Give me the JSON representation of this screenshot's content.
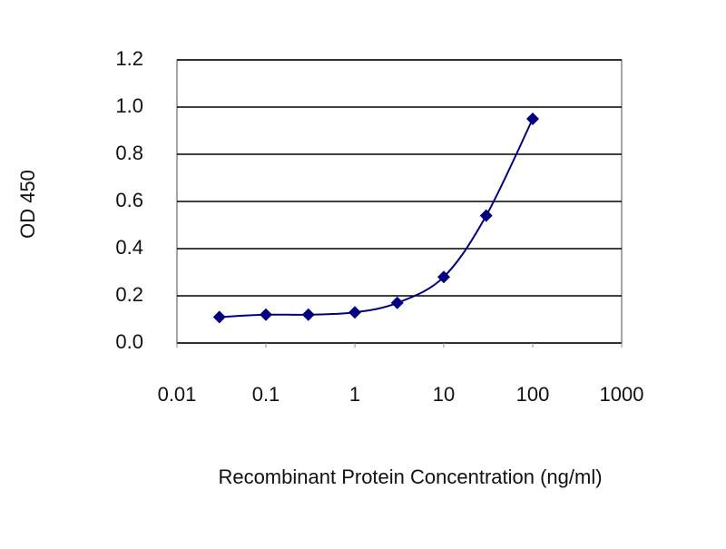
{
  "chart_data": {
    "type": "line",
    "x_label": "Recombinant Protein Concentration (ng/ml)",
    "y_label": "OD 450",
    "x": [
      0.03,
      0.1,
      0.3,
      1,
      3,
      10,
      30,
      100
    ],
    "series": [
      {
        "color": "#00007f",
        "values": [
          0.11,
          0.12,
          0.12,
          0.13,
          0.17,
          0.28,
          0.54,
          0.95
        ]
      }
    ],
    "xscale": "log",
    "xlim": [
      0.01,
      1000
    ],
    "xticks": [
      0.01,
      0.1,
      1,
      10,
      100,
      1000
    ],
    "ylim": [
      0,
      1.2
    ],
    "yticks": [
      {
        "value": 0,
        "label": "0.0"
      },
      0.2,
      0.4,
      0.6,
      0.8,
      {
        "value": 1,
        "label": "1.0"
      },
      1.2
    ],
    "grid": true
  }
}
